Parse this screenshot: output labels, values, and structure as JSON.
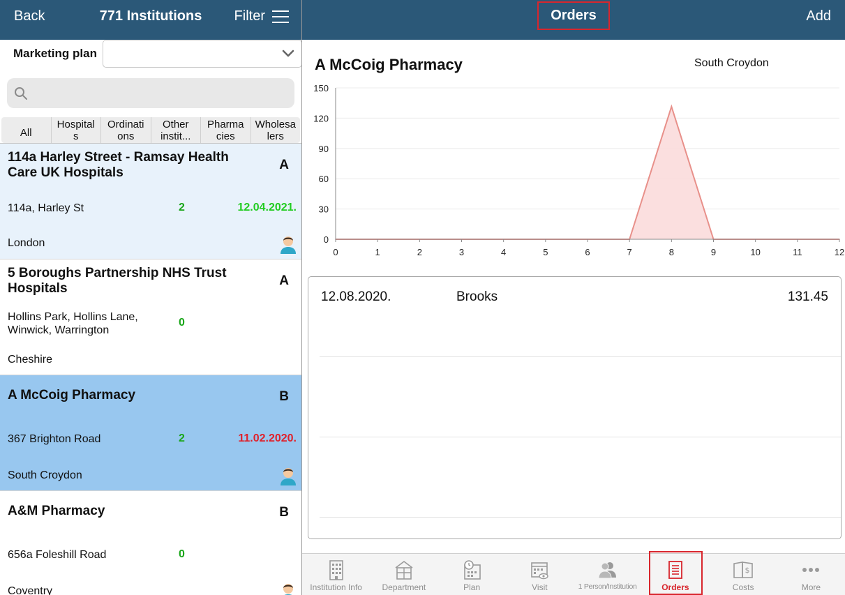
{
  "left_header": {
    "back_label": "Back",
    "title": "771 Institutions",
    "filter_label": "Filter"
  },
  "marketing_plan": {
    "label": "Marketing plan",
    "value": ""
  },
  "search": {
    "placeholder": "",
    "value": ""
  },
  "segments": [
    "All",
    "Hospital\ns",
    "Ordinati\nons",
    "Other\ninstit...",
    "Pharma\ncies",
    "Wholesa\nlers"
  ],
  "institutions": [
    {
      "name": "114a Harley Street - Ramsay Health Care UK Hospitals",
      "category": "A",
      "address": "114a, Harley St",
      "count": "2",
      "date": "12.04.2021.",
      "date_color": "#22cc22",
      "city": "London",
      "has_avatar": true,
      "state": "light"
    },
    {
      "name": "5 Boroughs Partnership NHS Trust Hospitals",
      "category": "A",
      "address": "Hollins Park, Hollins Lane, Winwick, Warrington",
      "count": "0",
      "date": "",
      "date_color": "",
      "city": "Cheshire",
      "has_avatar": false,
      "state": "normal"
    },
    {
      "name": "A McCoig Pharmacy",
      "category": "B",
      "address": "367 Brighton Road",
      "count": "2",
      "date": "11.02.2020.",
      "date_color": "#e0202a",
      "city": "South Croydon",
      "has_avatar": true,
      "state": "selected"
    },
    {
      "name": "A&M Pharmacy",
      "category": "B",
      "address": "656a Foleshill Road",
      "count": "0",
      "date": "",
      "date_color": "",
      "city": "Coventry",
      "has_avatar": true,
      "state": "normal"
    }
  ],
  "right_header": {
    "title": "Orders",
    "add_label": "Add"
  },
  "detail": {
    "name": "A McCoig Pharmacy",
    "city": "South Croydon"
  },
  "chart_data": {
    "type": "area",
    "title": "",
    "xlabel": "",
    "ylabel": "",
    "x": [
      0,
      1,
      2,
      3,
      4,
      5,
      6,
      7,
      8,
      9,
      10,
      11,
      12
    ],
    "series": [
      {
        "values": [
          0,
          0,
          0,
          0,
          0,
          0,
          0,
          0,
          131.45,
          0,
          0,
          0,
          0
        ],
        "color": "#e8908a",
        "fill": "#fbdcdc"
      }
    ],
    "xlim": [
      0,
      12
    ],
    "ylim": [
      0,
      150
    ],
    "yticks": [
      0,
      30,
      60,
      90,
      120,
      150
    ],
    "grid": true
  },
  "orders": [
    {
      "date": "12.08.2020.",
      "person": "Brooks",
      "amount": "131.45"
    }
  ],
  "tabs": [
    {
      "label": "Institution Info",
      "icon": "building-icon"
    },
    {
      "label": "Department",
      "icon": "department-icon"
    },
    {
      "label": "Plan",
      "icon": "plan-calendar-icon"
    },
    {
      "label": "Visit",
      "icon": "visit-calendar-icon"
    },
    {
      "label": "1 Person/Institution",
      "icon": "person-icon"
    },
    {
      "label": "Orders",
      "icon": "orders-icon"
    },
    {
      "label": "Costs",
      "icon": "costs-icon"
    },
    {
      "label": "More",
      "icon": "more-icon"
    }
  ],
  "colors": {
    "header": "#2b5878",
    "accent": "#d8262d",
    "selected_row": "#98c7ef",
    "highlight_row": "#e8f2fb",
    "count_green": "#1aa61a"
  }
}
